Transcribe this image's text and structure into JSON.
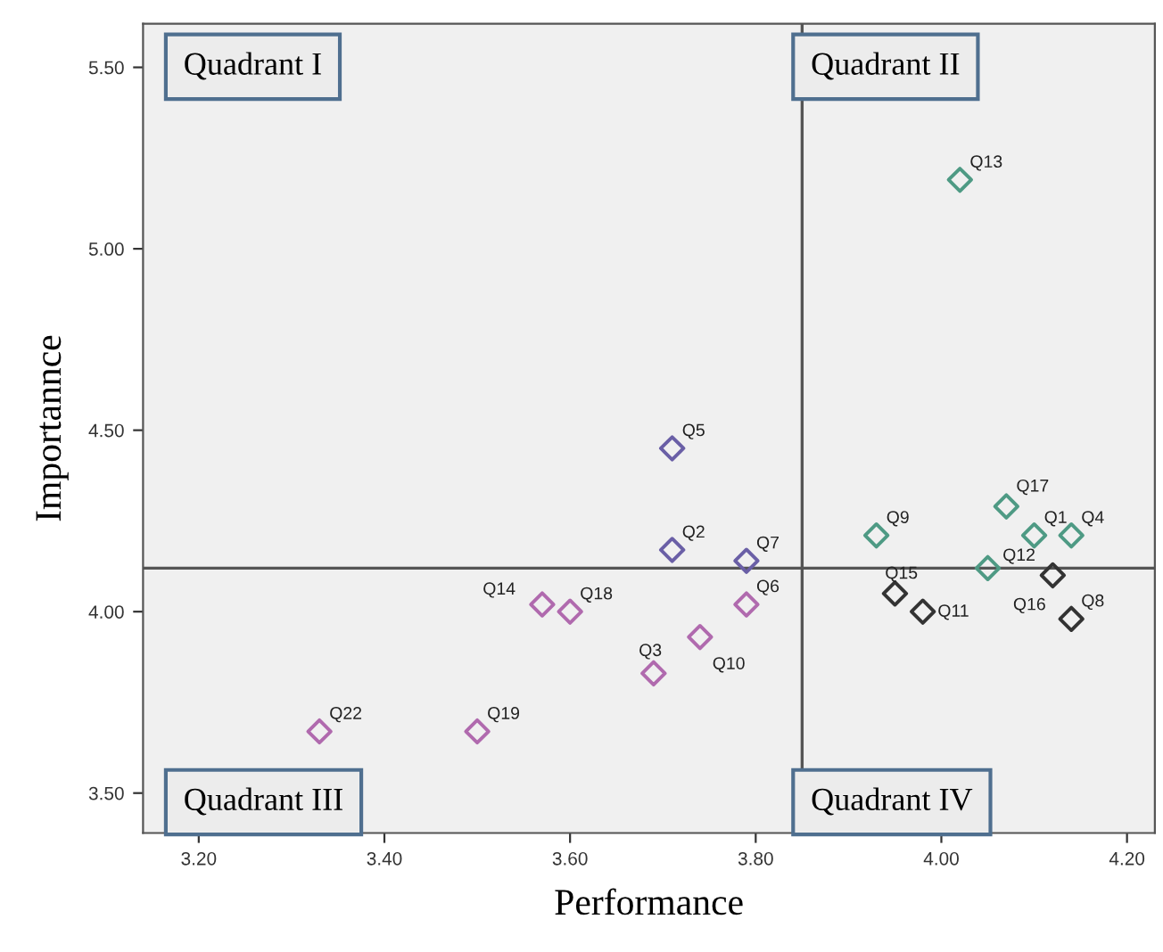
{
  "chart_data": {
    "type": "scatter",
    "xlabel": "Performance",
    "ylabel": "Importannce",
    "xlim": [
      3.14,
      4.23
    ],
    "ylim": [
      3.39,
      5.62
    ],
    "xticks": [
      {
        "value": 3.2,
        "label": "3.20"
      },
      {
        "value": 3.4,
        "label": "3.40"
      },
      {
        "value": 3.6,
        "label": "3.60"
      },
      {
        "value": 3.8,
        "label": "3.80"
      },
      {
        "value": 4.0,
        "label": "4.00"
      },
      {
        "value": 4.2,
        "label": "4.20"
      }
    ],
    "yticks": [
      {
        "value": 3.5,
        "label": "3.50"
      },
      {
        "value": 4.0,
        "label": "4.00"
      },
      {
        "value": 4.5,
        "label": "4.50"
      },
      {
        "value": 5.0,
        "label": "5.00"
      },
      {
        "value": 5.5,
        "label": "5.50"
      }
    ],
    "marker": "diamond",
    "grid": false,
    "series": [
      {
        "x": [
          4.02,
          3.71,
          3.71,
          3.79,
          3.79,
          3.74,
          3.69,
          3.6,
          3.57,
          3.33,
          3.5,
          3.93,
          4.07,
          4.1,
          4.14,
          4.05,
          4.12,
          3.95,
          3.98,
          4.14
        ],
        "values": [
          5.19,
          4.45,
          4.17,
          4.14,
          4.02,
          3.93,
          3.83,
          4.0,
          4.02,
          3.67,
          3.67,
          4.21,
          4.29,
          4.21,
          4.21,
          4.12,
          4.1,
          4.05,
          4.0,
          3.98
        ],
        "colors": [
          "#4e9a84",
          "#6a5fa6",
          "#6a5fa6",
          "#6a5fa6",
          "#b06aae",
          "#b06aae",
          "#b06aae",
          "#b06aae",
          "#b06aae",
          "#b06aae",
          "#b06aae",
          "#4e9a84",
          "#4e9a84",
          "#4e9a84",
          "#4e9a84",
          "#4e9a84",
          "#333333",
          "#333333",
          "#333333",
          "#333333"
        ]
      }
    ],
    "ref_lines": [
      {
        "axis": "x",
        "value": 3.85,
        "color": "#555555"
      },
      {
        "axis": "y",
        "value": 4.12,
        "color": "#555555"
      }
    ],
    "annotations": [
      "Quadrant I",
      "Quadrant II",
      "Quadrant III",
      "Quadrant IV",
      {
        "text": "Q13",
        "x": 4.02,
        "y": 5.19
      },
      {
        "text": "Q5",
        "x": 3.71,
        "y": 4.45
      },
      {
        "text": "Q2",
        "x": 3.71,
        "y": 4.17
      },
      {
        "text": "Q7",
        "x": 3.79,
        "y": 4.14
      },
      {
        "text": "Q6",
        "x": 3.79,
        "y": 4.02
      },
      {
        "text": "Q10",
        "x": 3.74,
        "y": 3.93
      },
      {
        "text": "Q3",
        "x": 3.69,
        "y": 3.83
      },
      {
        "text": "Q18",
        "x": 3.6,
        "y": 4.0
      },
      {
        "text": "Q14",
        "x": 3.57,
        "y": 4.02
      },
      {
        "text": "Q22",
        "x": 3.33,
        "y": 3.67
      },
      {
        "text": "Q19",
        "x": 3.5,
        "y": 3.67
      },
      {
        "text": "Q9",
        "x": 3.93,
        "y": 4.21
      },
      {
        "text": "Q17",
        "x": 4.07,
        "y": 4.29
      },
      {
        "text": "Q1",
        "x": 4.1,
        "y": 4.21
      },
      {
        "text": "Q4",
        "x": 4.14,
        "y": 4.21
      },
      {
        "text": "Q12",
        "x": 4.05,
        "y": 4.12
      },
      {
        "text": "Q16",
        "x": 4.12,
        "y": 4.1
      },
      {
        "text": "Q15",
        "x": 3.95,
        "y": 4.05
      },
      {
        "text": "Q11",
        "x": 3.98,
        "y": 4.0
      },
      {
        "text": "Q8",
        "x": 4.14,
        "y": 3.98
      }
    ]
  }
}
